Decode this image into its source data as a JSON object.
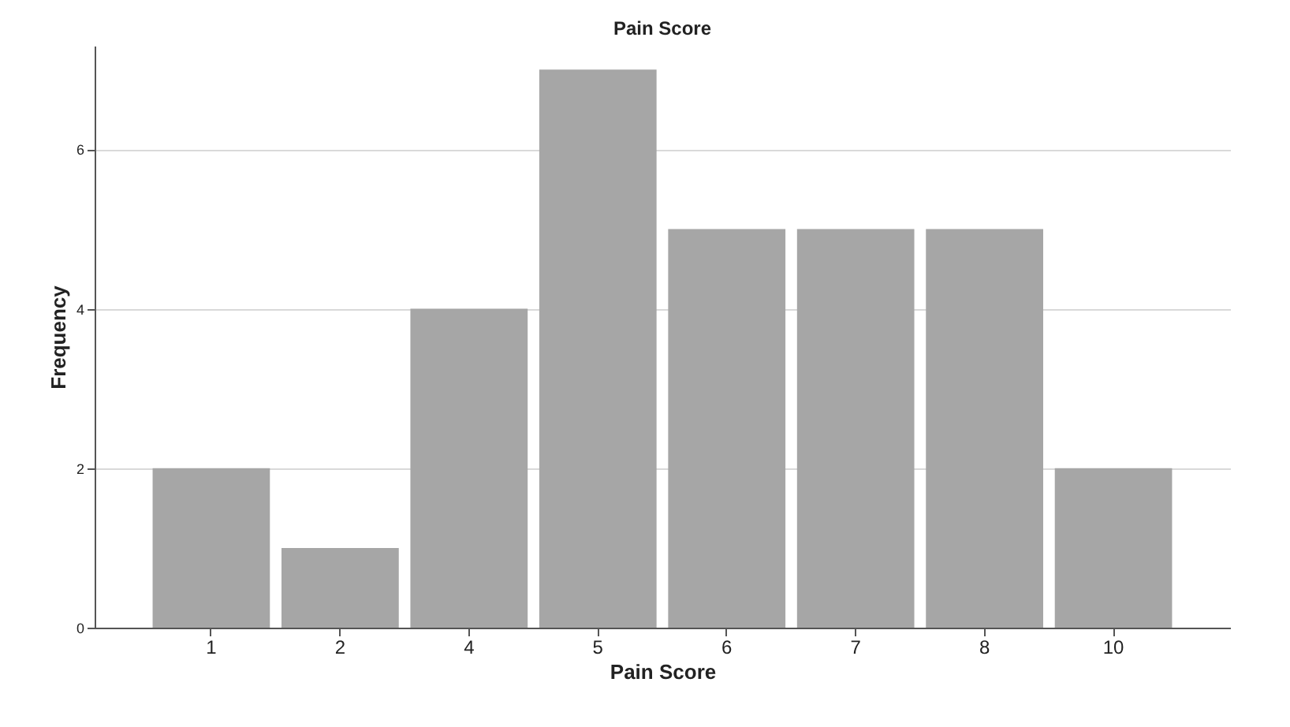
{
  "chart_data": {
    "type": "bar",
    "title": "Pain Score",
    "xlabel": "Pain Score",
    "ylabel": "Frequency",
    "categories": [
      "1",
      "2",
      "4",
      "5",
      "6",
      "7",
      "8",
      "10"
    ],
    "values": [
      2,
      1,
      4,
      7,
      5,
      5,
      5,
      2
    ],
    "color": "#a6a6a6",
    "ylim": [
      0,
      7.3
    ],
    "yticks": [
      0,
      2,
      4,
      6
    ],
    "grid": "y"
  }
}
